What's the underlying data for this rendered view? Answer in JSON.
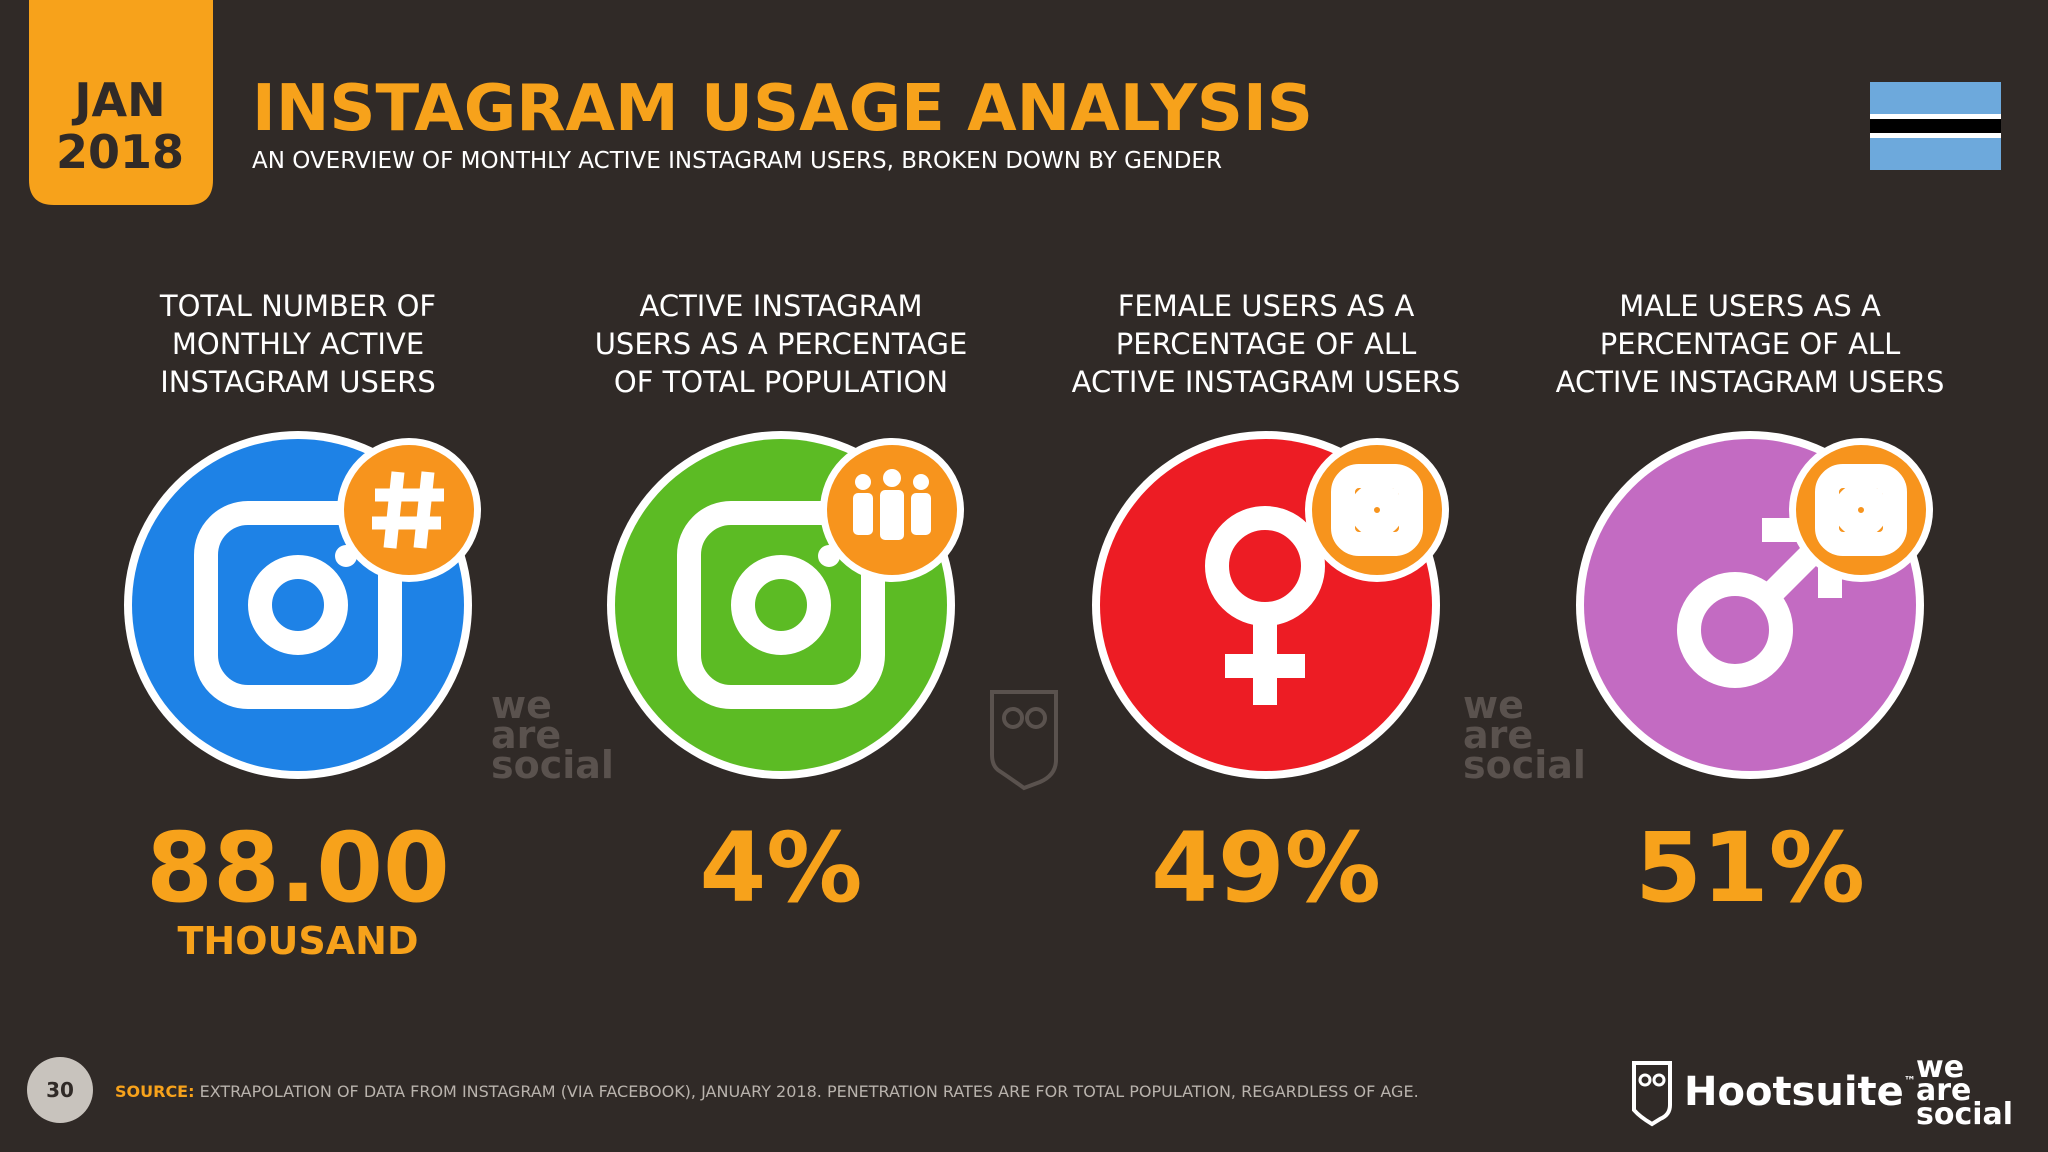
{
  "header": {
    "month": "JAN",
    "year": "2018",
    "title": "INSTAGRAM USAGE ANALYSIS",
    "subtitle": "AN OVERVIEW OF MONTHLY ACTIVE INSTAGRAM USERS, BROKEN DOWN BY GENDER"
  },
  "cards": [
    {
      "label": [
        "TOTAL NUMBER OF",
        "MONTHLY ACTIVE",
        "INSTAGRAM USERS"
      ],
      "value": "88.00",
      "unit": "THOUSAND"
    },
    {
      "label": [
        "ACTIVE INSTAGRAM",
        "USERS AS A PERCENTAGE",
        "OF TOTAL POPULATION"
      ],
      "value": "4%"
    },
    {
      "label": [
        "FEMALE USERS AS A",
        "PERCENTAGE OF ALL",
        "ACTIVE INSTAGRAM USERS"
      ],
      "value": "49%"
    },
    {
      "label": [
        "MALE USERS AS A",
        "PERCENTAGE OF ALL",
        "ACTIVE INSTAGRAM USERS"
      ],
      "value": "51%"
    }
  ],
  "watermark": [
    "we",
    "are",
    "social"
  ],
  "footer": {
    "page": "30",
    "source_label": "SOURCE:",
    "source": "EXTRAPOLATION OF DATA FROM INSTAGRAM (VIA FACEBOOK), JANUARY 2018. PENETRATION RATES ARE FOR TOTAL POPULATION, REGARDLESS OF AGE.",
    "brand": "Hootsuite",
    "brand_mark": "™",
    "partner": [
      "we",
      "are",
      "social"
    ]
  }
}
